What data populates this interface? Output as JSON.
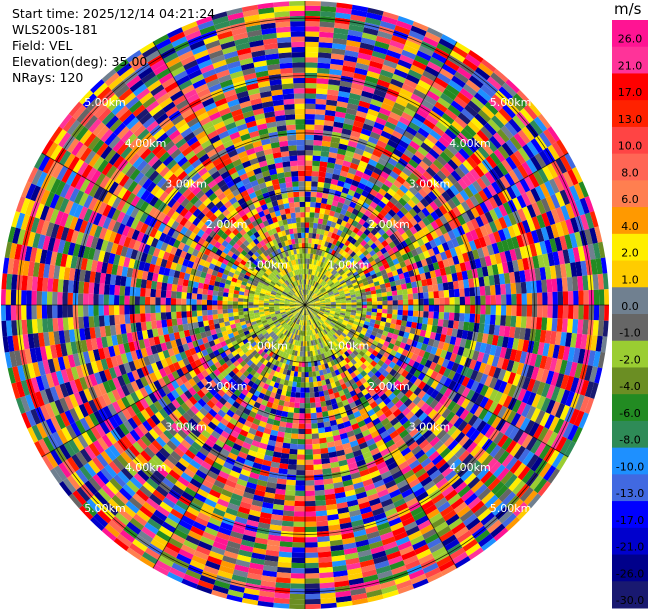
{
  "header": {
    "start_time": "Start time: 2025/12/14 04:21:24",
    "site": "WLS200s-181",
    "field": "Field: VEL",
    "elevation": "Elevation(deg): 35.00",
    "nrays": "NRays: 120"
  },
  "colorbar": {
    "unit": "m/s",
    "levels": [
      26.0,
      21.0,
      17.0,
      13.0,
      10.0,
      8.0,
      6.0,
      4.0,
      2.0,
      1.0,
      0.0,
      -1.0,
      -2.0,
      -4.0,
      -6.0,
      -8.0,
      -10.0,
      -13.0,
      -17.0,
      -21.0,
      -26.0,
      -30.0
    ],
    "labels": [
      "26.0",
      "21.0",
      "17.0",
      "13.0",
      "10.0",
      "8.0",
      "6.0",
      "4.0",
      "2.0",
      "1.0",
      "0.0",
      "-1.0",
      "-2.0",
      "-4.0",
      "-6.0",
      "-8.0",
      "-10.0",
      "-13.0",
      "-17.0",
      "-21.0",
      "-26.0",
      "-30.0"
    ],
    "colors": [
      "#ff1493",
      "#ff3399",
      "#ff0000",
      "#ff2200",
      "#ff4444",
      "#ff6655",
      "#ff7f50",
      "#ff9900",
      "#ffee00",
      "#ffcc00",
      "#708090",
      "#666666",
      "#9acd32",
      "#6b8e23",
      "#228b22",
      "#2e8b57",
      "#1e90ff",
      "#4169e1",
      "#0000ff",
      "#0000cd",
      "#00008b",
      "#191970"
    ]
  },
  "chart_data": {
    "type": "heatmap",
    "projection": "polar PPI",
    "field": "VEL",
    "units": "m/s",
    "nrays": 120,
    "ring_labels": [
      "1.00km",
      "2.00km",
      "3.00km",
      "4.00km",
      "5.00km"
    ],
    "range_max_km": 5.3,
    "grid": true,
    "note_visible": "near-range cells mostly yellow-green (about -2 to 4 m/s); outer cells noisy across full scale"
  }
}
